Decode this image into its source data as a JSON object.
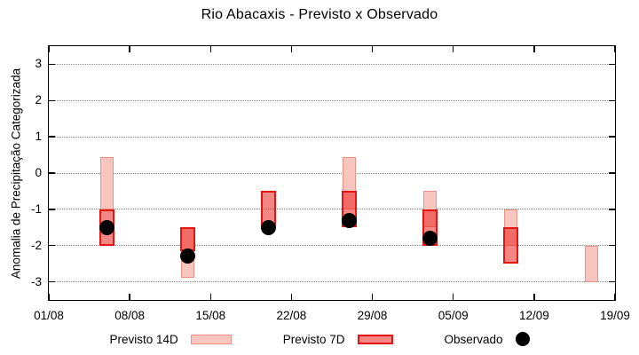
{
  "title": "Rio Abacaxis - Previsto x Observado",
  "legend": {
    "previsto14_label": "Previsto 14D",
    "previsto7_label": "Previsto 7D",
    "observado_label": "Observado"
  },
  "colors": {
    "p14_fill": "#f9c6bf",
    "p14_border": "#ee9184",
    "p7_fill": "rgba(235,35,30,0.55)",
    "p7_border": "#e41410",
    "observed": "#000000",
    "grid": "#8a8a8a",
    "axis": "#000000"
  },
  "chart_data": {
    "type": "bar",
    "subtype": "range-candlestick-with-observed-points",
    "title": "Rio Abacaxis - Previsto x Observado",
    "xlabel": "",
    "ylabel": "Anomalia de Precipitação Categorizada",
    "ylim": [
      -3.5,
      3.5
    ],
    "y_ticks": [
      3,
      2,
      1,
      0,
      -1,
      -2,
      -3
    ],
    "x_ticks": [
      "01/08",
      "08/08",
      "15/08",
      "22/08",
      "29/08",
      "05/09",
      "12/09",
      "19/09"
    ],
    "x_tick_interval_days": 7,
    "x_total_days": 49,
    "grid": "dotted-horizontal",
    "legend_position": "bottom-center",
    "series": [
      {
        "name": "Previsto 14D",
        "style": "light-pink-range-bar"
      },
      {
        "name": "Previsto 7D",
        "style": "red-translucent-range-bar"
      },
      {
        "name": "Observado",
        "style": "black-dot"
      }
    ],
    "points": [
      {
        "date": "06/08",
        "x_day": 5,
        "previsto_14d": [
          0.45,
          -1.0
        ],
        "previsto_7d": [
          -1.0,
          -2.0
        ],
        "observado": -1.5
      },
      {
        "date": "13/08",
        "x_day": 12,
        "previsto_14d": [
          -1.5,
          -2.9
        ],
        "previsto_7d": [
          -1.5,
          -2.15
        ],
        "observado": -2.3
      },
      {
        "date": "20/08",
        "x_day": 19,
        "previsto_14d": null,
        "previsto_7d": [
          -0.5,
          -1.5
        ],
        "observado": -1.5
      },
      {
        "date": "27/08",
        "x_day": 26,
        "previsto_14d": [
          0.45,
          -1.0
        ],
        "previsto_7d": [
          -0.5,
          -1.5
        ],
        "observado": -1.3
      },
      {
        "date": "03/09",
        "x_day": 33,
        "previsto_14d": [
          -0.5,
          -1.5
        ],
        "previsto_7d": [
          -1.0,
          -2.0
        ],
        "observado": -1.8
      },
      {
        "date": "10/09",
        "x_day": 40,
        "previsto_14d": [
          -1.0,
          -2.0
        ],
        "previsto_7d": [
          -1.5,
          -2.5
        ],
        "observado": null
      },
      {
        "date": "17/09",
        "x_day": 47,
        "previsto_14d": [
          -2.0,
          -3.0
        ],
        "previsto_7d": null,
        "observado": null
      }
    ]
  }
}
